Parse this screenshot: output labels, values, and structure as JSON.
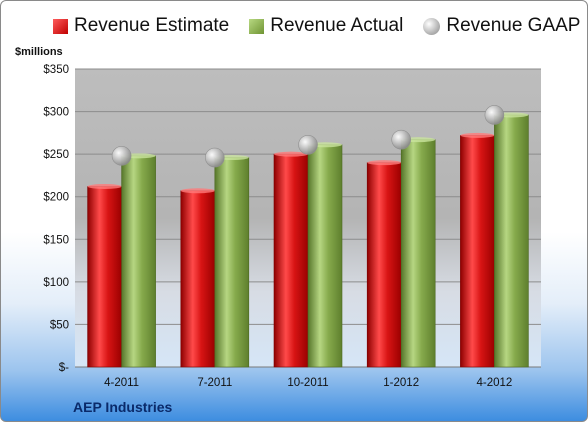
{
  "chart_data": {
    "type": "bar",
    "title": "",
    "ylabel": "$millions",
    "company": "AEP Industries",
    "categories": [
      "4-2011",
      "7-2011",
      "10-2011",
      "1-2012",
      "4-2012"
    ],
    "series": [
      {
        "name": "Revenue Estimate",
        "values": [
          212,
          207,
          250,
          240,
          272
        ],
        "color": "#c00000"
      },
      {
        "name": "Revenue Actual",
        "values": [
          248,
          246,
          261,
          267,
          296
        ],
        "color": "#7aa03c"
      },
      {
        "name": "Revenue GAAP",
        "values": [
          248,
          246,
          261,
          267,
          296
        ],
        "color": "#b0b0b0"
      }
    ],
    "yticks": [
      "$-",
      "$50",
      "$100",
      "$150",
      "$200",
      "$250",
      "$300",
      "$350"
    ],
    "ylim": [
      0,
      350
    ],
    "grid": true,
    "legend": "top"
  }
}
